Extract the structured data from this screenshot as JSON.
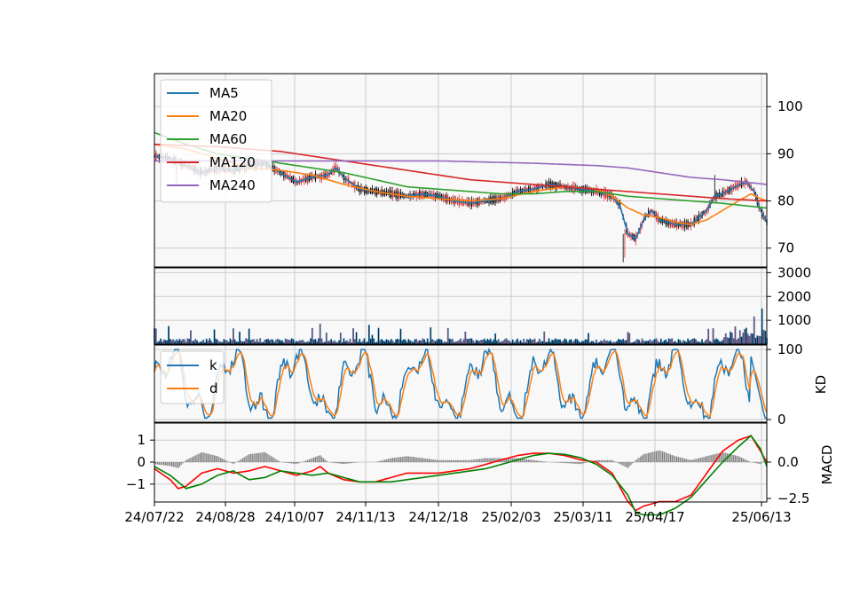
{
  "chart_data": [
    {
      "type": "candlestick",
      "panel": "price",
      "ylim": [
        66,
        107
      ],
      "yticks": [
        70,
        80,
        90,
        100
      ],
      "ytick_labels": [
        "70",
        "80",
        "90",
        "100"
      ],
      "grid": true,
      "legend_position": "top-left",
      "candle_colors": {
        "up": "#d62728",
        "down": "#000000"
      },
      "series": [
        {
          "name": "MA5",
          "color": "#1f77b4",
          "points": [
            [
              0,
              89.5
            ],
            [
              10,
              89
            ],
            [
              20,
              87.5
            ],
            [
              30,
              86
            ],
            [
              40,
              87
            ],
            [
              50,
              86.5
            ],
            [
              60,
              87.5
            ],
            [
              70,
              88
            ],
            [
              80,
              86
            ],
            [
              90,
              84
            ],
            [
              100,
              85
            ],
            [
              110,
              85.5
            ],
            [
              115,
              87
            ],
            [
              120,
              85
            ],
            [
              130,
              82.5
            ],
            [
              140,
              82
            ],
            [
              150,
              81.5
            ],
            [
              160,
              81
            ],
            [
              170,
              81.5
            ],
            [
              180,
              81
            ],
            [
              190,
              80
            ],
            [
              200,
              79.5
            ],
            [
              210,
              80
            ],
            [
              220,
              80.5
            ],
            [
              230,
              82
            ],
            [
              240,
              82.5
            ],
            [
              250,
              83.5
            ],
            [
              260,
              83
            ],
            [
              270,
              82.5
            ],
            [
              280,
              82
            ],
            [
              290,
              81
            ],
            [
              295,
              79
            ],
            [
              300,
              73
            ],
            [
              305,
              72
            ],
            [
              310,
              76
            ],
            [
              315,
              78
            ],
            [
              320,
              76
            ],
            [
              330,
              75
            ],
            [
              340,
              75
            ],
            [
              350,
              78
            ],
            [
              355,
              81
            ],
            [
              360,
              81.5
            ],
            [
              368,
              83
            ],
            [
              375,
              84
            ],
            [
              380,
              82
            ],
            [
              384,
              78
            ],
            [
              388,
              75.5
            ]
          ]
        },
        {
          "name": "MA20",
          "color": "#ff7f0e",
          "points": [
            [
              0,
              92
            ],
            [
              20,
              91
            ],
            [
              40,
              89
            ],
            [
              50,
              88
            ],
            [
              60,
              87
            ],
            [
              80,
              86.5
            ],
            [
              100,
              85.5
            ],
            [
              110,
              84.5
            ],
            [
              120,
              83.5
            ],
            [
              140,
              82
            ],
            [
              160,
              81
            ],
            [
              180,
              80.5
            ],
            [
              200,
              80
            ],
            [
              220,
              80.5
            ],
            [
              240,
              82
            ],
            [
              260,
              83
            ],
            [
              280,
              82.5
            ],
            [
              290,
              81
            ],
            [
              300,
              78.5
            ],
            [
              310,
              77
            ],
            [
              320,
              76.5
            ],
            [
              330,
              75.5
            ],
            [
              340,
              75
            ],
            [
              350,
              76
            ],
            [
              360,
              78
            ],
            [
              370,
              80
            ],
            [
              378,
              81.5
            ],
            [
              384,
              80.5
            ],
            [
              388,
              80
            ]
          ]
        },
        {
          "name": "MA60",
          "color": "#2ca02c",
          "points": [
            [
              0,
              94.5
            ],
            [
              20,
              92
            ],
            [
              40,
              90
            ],
            [
              60,
              89
            ],
            [
              80,
              88
            ],
            [
              100,
              87
            ],
            [
              120,
              86
            ],
            [
              140,
              84.5
            ],
            [
              160,
              83
            ],
            [
              180,
              82.5
            ],
            [
              200,
              82
            ],
            [
              220,
              81.5
            ],
            [
              240,
              81.5
            ],
            [
              260,
              82
            ],
            [
              280,
              82
            ],
            [
              300,
              81
            ],
            [
              320,
              80.5
            ],
            [
              340,
              80
            ],
            [
              360,
              79.5
            ],
            [
              388,
              78.5
            ]
          ]
        },
        {
          "name": "MA120",
          "color": "#d62728",
          "points": [
            [
              0,
              92
            ],
            [
              40,
              91.5
            ],
            [
              80,
              90.5
            ],
            [
              100,
              89.5
            ],
            [
              120,
              88.5
            ],
            [
              140,
              87.5
            ],
            [
              160,
              86.5
            ],
            [
              180,
              85.5
            ],
            [
              200,
              84.5
            ],
            [
              220,
              84
            ],
            [
              240,
              83.5
            ],
            [
              260,
              83
            ],
            [
              280,
              82.5
            ],
            [
              300,
              82
            ],
            [
              320,
              81.5
            ],
            [
              340,
              81
            ],
            [
              360,
              80.5
            ],
            [
              388,
              80
            ]
          ]
        },
        {
          "name": "MA240",
          "color": "#9467bd",
          "points": [
            [
              0,
              88.5
            ],
            [
              60,
              88.5
            ],
            [
              120,
              88.5
            ],
            [
              180,
              88.5
            ],
            [
              240,
              88
            ],
            [
              280,
              87.5
            ],
            [
              300,
              87
            ],
            [
              320,
              86
            ],
            [
              340,
              85
            ],
            [
              360,
              84.5
            ],
            [
              388,
              83.5
            ]
          ]
        }
      ]
    },
    {
      "type": "bar",
      "panel": "volume",
      "ylim": [
        0,
        3200
      ],
      "yticks": [
        1000,
        2000,
        3000
      ],
      "ytick_labels": [
        "1000",
        "2000",
        "3000"
      ],
      "grid": true,
      "notable_values": [
        [
          105,
          850
        ],
        [
          136,
          800
        ],
        [
          385,
          1100
        ],
        [
          380,
          800
        ],
        [
          375,
          600
        ],
        [
          300,
          500
        ]
      ]
    },
    {
      "type": "line",
      "panel": "kd",
      "ylabel": "KD",
      "ylim": [
        0,
        100
      ],
      "yticks": [
        0,
        100
      ],
      "ytick_labels": [
        "0",
        "100"
      ],
      "grid": true,
      "legend_position": "top-left",
      "series": [
        {
          "name": "k",
          "color": "#1f77b4"
        },
        {
          "name": "d",
          "color": "#ff7f0e"
        }
      ]
    },
    {
      "type": "line",
      "panel": "macd",
      "ylabel": "MACD",
      "left_yticks": [
        1,
        0,
        -1
      ],
      "left_ytick_labels": [
        "1",
        "0",
        "−1"
      ],
      "right_yticks": [
        0.0,
        -2.5
      ],
      "right_ytick_labels": [
        "0.0",
        "−2.5"
      ],
      "grid": true,
      "series": [
        {
          "color": "#ff0000",
          "points": [
            [
              0,
              -0.3
            ],
            [
              10,
              -0.8
            ],
            [
              15,
              -1.2
            ],
            [
              20,
              -1.1
            ],
            [
              30,
              -0.5
            ],
            [
              40,
              -0.3
            ],
            [
              50,
              -0.5
            ],
            [
              60,
              -0.4
            ],
            [
              70,
              -0.2
            ],
            [
              80,
              -0.4
            ],
            [
              90,
              -0.6
            ],
            [
              100,
              -0.4
            ],
            [
              105,
              -0.2
            ],
            [
              110,
              -0.5
            ],
            [
              120,
              -0.8
            ],
            [
              130,
              -0.9
            ],
            [
              140,
              -0.9
            ],
            [
              150,
              -0.7
            ],
            [
              160,
              -0.5
            ],
            [
              170,
              -0.5
            ],
            [
              180,
              -0.5
            ],
            [
              190,
              -0.4
            ],
            [
              200,
              -0.3
            ],
            [
              210,
              -0.1
            ],
            [
              220,
              0.1
            ],
            [
              230,
              0.3
            ],
            [
              240,
              0.4
            ],
            [
              250,
              0.4
            ],
            [
              260,
              0.3
            ],
            [
              270,
              0.1
            ],
            [
              280,
              0
            ],
            [
              290,
              -0.5
            ],
            [
              300,
              -1.8
            ],
            [
              305,
              -2.2
            ],
            [
              310,
              -2.0
            ],
            [
              320,
              -1.8
            ],
            [
              330,
              -1.8
            ],
            [
              340,
              -1.5
            ],
            [
              350,
              -0.5
            ],
            [
              360,
              0.5
            ],
            [
              370,
              1.0
            ],
            [
              378,
              1.2
            ],
            [
              384,
              0.5
            ],
            [
              388,
              0
            ]
          ]
        },
        {
          "color": "#008000",
          "points": [
            [
              0,
              -0.2
            ],
            [
              10,
              -0.6
            ],
            [
              20,
              -1.2
            ],
            [
              30,
              -1.0
            ],
            [
              40,
              -0.6
            ],
            [
              50,
              -0.4
            ],
            [
              60,
              -0.8
            ],
            [
              70,
              -0.7
            ],
            [
              80,
              -0.4
            ],
            [
              90,
              -0.5
            ],
            [
              100,
              -0.6
            ],
            [
              110,
              -0.5
            ],
            [
              120,
              -0.7
            ],
            [
              130,
              -0.9
            ],
            [
              140,
              -0.9
            ],
            [
              150,
              -0.9
            ],
            [
              160,
              -0.8
            ],
            [
              170,
              -0.7
            ],
            [
              180,
              -0.6
            ],
            [
              190,
              -0.5
            ],
            [
              200,
              -0.4
            ],
            [
              210,
              -0.3
            ],
            [
              220,
              -0.1
            ],
            [
              230,
              0.1
            ],
            [
              240,
              0.3
            ],
            [
              250,
              0.4
            ],
            [
              260,
              0.35
            ],
            [
              270,
              0.2
            ],
            [
              280,
              -0.1
            ],
            [
              290,
              -0.6
            ],
            [
              300,
              -1.5
            ],
            [
              305,
              -2.3
            ],
            [
              310,
              -2.4
            ],
            [
              320,
              -2.4
            ],
            [
              330,
              -2.1
            ],
            [
              340,
              -1.6
            ],
            [
              350,
              -0.8
            ],
            [
              360,
              0
            ],
            [
              370,
              0.7
            ],
            [
              378,
              1.2
            ],
            [
              384,
              0.6
            ],
            [
              388,
              -0.2
            ]
          ]
        }
      ]
    }
  ],
  "x_axis": {
    "tick_labels": [
      "24/07/22",
      "24/08/28",
      "24/10/07",
      "24/11/13",
      "24/12/18",
      "25/02/03",
      "25/03/11",
      "25/04/17",
      "25/06/13"
    ]
  }
}
